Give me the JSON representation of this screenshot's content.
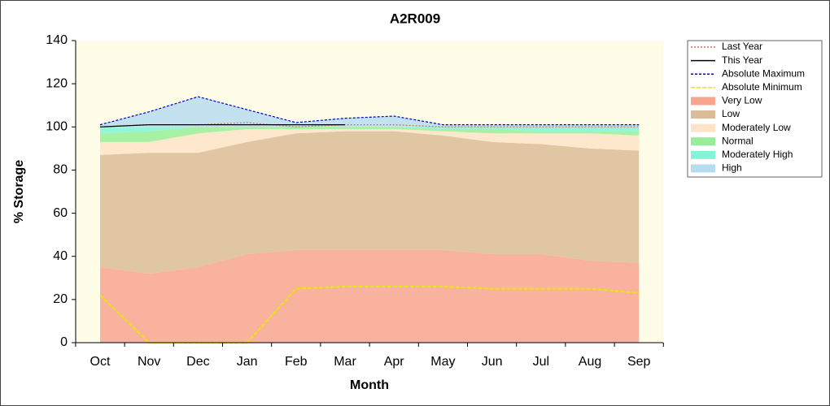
{
  "chart_data": {
    "type": "stacked_area_line",
    "title": "A2R009",
    "x_label": "Month",
    "y_label": "% Storage",
    "categories": [
      "Oct",
      "Nov",
      "Dec",
      "Jan",
      "Feb",
      "Mar",
      "Apr",
      "May",
      "Jun",
      "Jul",
      "Aug",
      "Sep"
    ],
    "ylim": [
      0,
      140
    ],
    "yticks": [
      0,
      20,
      40,
      60,
      80,
      100,
      120,
      140
    ],
    "bands": [
      {
        "name": "Very Low",
        "color": "#f8a58f",
        "values": [
          35,
          32,
          35,
          41,
          43,
          43,
          43,
          43,
          41,
          41,
          38,
          37
        ]
      },
      {
        "name": "Low",
        "color": "#dcbc98",
        "values": [
          52,
          56,
          53,
          52,
          54,
          55,
          55,
          53,
          52,
          51,
          52,
          52
        ]
      },
      {
        "name": "Moderately Low",
        "color": "#fde3c8",
        "values": [
          6,
          5,
          9,
          6,
          2,
          1,
          1,
          2,
          4,
          5,
          7,
          7
        ]
      },
      {
        "name": "Normal",
        "color": "#98ee98",
        "values": [
          4,
          5,
          3,
          1,
          1,
          1,
          1,
          1,
          2,
          1,
          1,
          2
        ]
      },
      {
        "name": "Moderately High",
        "color": "#80f5d8",
        "values": [
          3,
          2,
          0,
          0,
          0,
          0,
          0,
          1,
          1,
          2,
          2,
          2
        ]
      },
      {
        "name": "High",
        "color": "#b8dcef",
        "values": [
          1,
          7,
          14,
          8,
          2,
          4,
          5,
          1,
          1,
          1,
          1,
          1
        ]
      }
    ],
    "lines": [
      {
        "name": "Last Year",
        "color": "#c87850",
        "dash": "2,2",
        "values": [
          100,
          101,
          101,
          102,
          100,
          101,
          101,
          100,
          100,
          100,
          100,
          100
        ]
      },
      {
        "name": "This Year",
        "color": "#000000",
        "dash": "",
        "values": [
          100,
          101,
          101,
          101,
          101,
          101,
          null,
          null,
          null,
          null,
          null,
          null
        ]
      },
      {
        "name": "Absolute Maximum",
        "color": "#0000cc",
        "dash": "3,2",
        "values": [
          101,
          107,
          114,
          108,
          102,
          104,
          105,
          101,
          101,
          101,
          101,
          101
        ]
      },
      {
        "name": "Absolute Minimum",
        "color": "#e8e800",
        "dash": "5,2",
        "values": [
          22,
          0,
          0,
          0,
          25,
          26,
          26,
          26,
          25,
          25,
          25,
          23
        ]
      }
    ],
    "legend_order": [
      "Last Year",
      "This Year",
      "Absolute Maximum",
      "Absolute Minimum",
      "Very Low",
      "Low",
      "Moderately Low",
      "Normal",
      "Moderately High",
      "High"
    ]
  }
}
